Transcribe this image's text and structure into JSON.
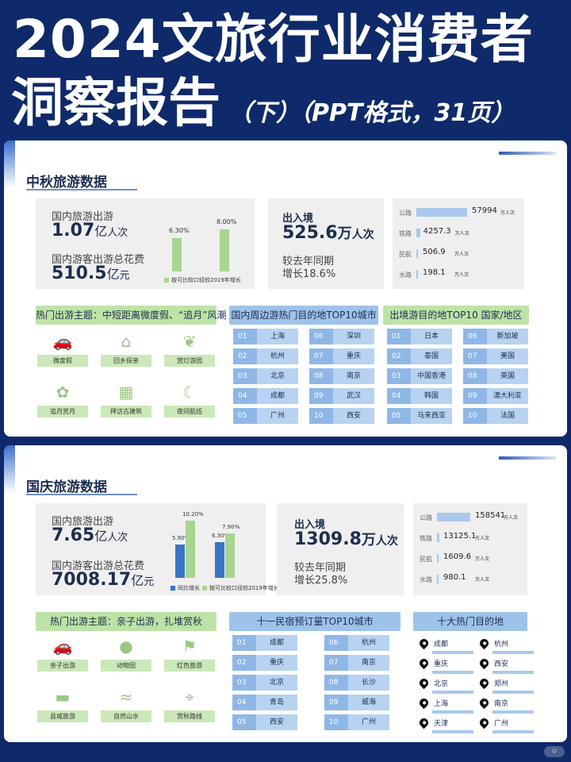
{
  "header": {
    "title_line1": "2024文旅行业消费者",
    "title_line2": "洞察报告",
    "subtitle": "（下）（PPT格式，31页）"
  },
  "mid_autumn": {
    "section_title": "中秋旅游数据",
    "domestic_trips_label": "国内旅游出游",
    "domestic_trips_value": "1.07",
    "domestic_trips_unit": "亿",
    "domestic_trips_unit2": "人次",
    "spend_label": "国内游客出游总花费",
    "spend_value": "510.5",
    "spend_unit": "亿",
    "spend_unit2": "元",
    "chart_data": {
      "type": "bar",
      "categories": [
        "国内旅游出游",
        "国内游客出游总花费"
      ],
      "series": [
        {
          "name": "按可比较口径较2019年增长",
          "values": [
            6.3,
            8.0
          ]
        }
      ],
      "value_labels": [
        "6.30%",
        "8.00%"
      ],
      "legend": "按可比较口径较2019年增长"
    },
    "crossborder_label": "出入境",
    "crossborder_value": "525.6",
    "crossborder_unit": "万",
    "crossborder_unit2": "人次",
    "yoy_label": "较去年同期",
    "yoy_value": "增长18.6%",
    "transport": [
      {
        "mode": "公路",
        "value": "57994",
        "unit": "万人次",
        "ratio": 1.0
      },
      {
        "mode": "铁路",
        "value": "4257.3",
        "unit": "万人次",
        "ratio": 0.073
      },
      {
        "mode": "民航",
        "value": "506.9",
        "unit": "万人次",
        "ratio": 0.009
      },
      {
        "mode": "水路",
        "value": "198.1",
        "unit": "万人次",
        "ratio": 0.003
      }
    ],
    "theme_title": "热门出游主题：中短距离微度假、“追月”风潮",
    "themes": [
      "微度假",
      "回乡探亲",
      "赏灯游园",
      "追月赏月",
      "拜访古建筑",
      "夜间航班"
    ],
    "nearby_title": "国内周边游热门目的地TOP10城市",
    "nearby": [
      {
        "no": "01",
        "city": "上海"
      },
      {
        "no": "02",
        "city": "杭州"
      },
      {
        "no": "03",
        "city": "北京"
      },
      {
        "no": "04",
        "city": "成都"
      },
      {
        "no": "05",
        "city": "广州"
      },
      {
        "no": "06",
        "city": "深圳"
      },
      {
        "no": "07",
        "city": "重庆"
      },
      {
        "no": "08",
        "city": "南京"
      },
      {
        "no": "09",
        "city": "武汉"
      },
      {
        "no": "10",
        "city": "西安"
      }
    ],
    "outbound_title": "出境游目的地TOP10 国家/地区",
    "outbound": [
      {
        "no": "01",
        "city": "日本"
      },
      {
        "no": "02",
        "city": "泰国"
      },
      {
        "no": "03",
        "city": "中国香港"
      },
      {
        "no": "04",
        "city": "韩国"
      },
      {
        "no": "05",
        "city": "马来西亚"
      },
      {
        "no": "06",
        "city": "新加坡"
      },
      {
        "no": "07",
        "city": "美国"
      },
      {
        "no": "08",
        "city": "英国"
      },
      {
        "no": "09",
        "city": "澳大利亚"
      },
      {
        "no": "10",
        "city": "法国"
      }
    ]
  },
  "national_day": {
    "section_title": "国庆旅游数据",
    "domestic_trips_label": "国内旅游出游",
    "domestic_trips_value": "7.65",
    "domestic_trips_unit": "亿",
    "domestic_trips_unit2": "人次",
    "spend_label": "国内游客出游总花费",
    "spend_value": "7008.17",
    "spend_unit": "亿",
    "spend_unit2": "元",
    "chart_data": {
      "type": "bar",
      "categories": [
        "国内旅游出游",
        "国内游客出游总花费"
      ],
      "series": [
        {
          "name": "同比增长",
          "values": [
            5.9,
            6.3
          ],
          "color": "#3875c6"
        },
        {
          "name": "按可比较口径较2019年增长",
          "values": [
            10.2,
            7.9
          ],
          "color": "#a8d58f"
        }
      ],
      "value_labels": [
        [
          "5.90%",
          "6.30%"
        ],
        [
          "10.20%",
          "7.90%"
        ]
      ]
    },
    "crossborder_label": "出入境",
    "crossborder_value": "1309.8",
    "crossborder_unit": "万",
    "crossborder_unit2": "人次",
    "yoy_label": "较去年同期",
    "yoy_value": "增长25.8%",
    "transport": [
      {
        "mode": "公路",
        "value": "158541",
        "unit": "万人次",
        "ratio": 1.0
      },
      {
        "mode": "铁路",
        "value": "13125.1",
        "unit": "万人次",
        "ratio": 0.083
      },
      {
        "mode": "民航",
        "value": "1609.6",
        "unit": "万人次",
        "ratio": 0.01
      },
      {
        "mode": "水路",
        "value": "980.1",
        "unit": "万人次",
        "ratio": 0.006
      }
    ],
    "theme_title": "热门出游主题：亲子出游，扎堆赏秋",
    "themes": [
      "亲子出游",
      "动物园",
      "红色旅游",
      "县城旅游",
      "自然山水",
      "赏秋路线"
    ],
    "hotel_title": "十一民宿预订量TOP10城市",
    "hotel": [
      {
        "no": "01",
        "city": "成都"
      },
      {
        "no": "02",
        "city": "重庆"
      },
      {
        "no": "03",
        "city": "北京"
      },
      {
        "no": "04",
        "city": "青岛"
      },
      {
        "no": "05",
        "city": "西安"
      },
      {
        "no": "06",
        "city": "杭州"
      },
      {
        "no": "07",
        "city": "南京"
      },
      {
        "no": "08",
        "city": "长沙"
      },
      {
        "no": "09",
        "city": "威海"
      },
      {
        "no": "10",
        "city": "广州"
      }
    ],
    "dest_title": "十大热门目的地",
    "destinations": [
      "成都",
      "重庆",
      "北京",
      "上海",
      "天津",
      "杭州",
      "西安",
      "郑州",
      "南京",
      "广州"
    ]
  },
  "icons": {
    "micro_vacation": "car-icon",
    "home_visit": "house-icon",
    "lantern": "lantern-icon",
    "moon_view": "flower-icon",
    "ancient_building": "building-icon",
    "night_flight": "moon-icon",
    "family": "car-icon",
    "zoo": "panda-icon",
    "red_tour": "flag-icon",
    "county_tour": "bus-icon",
    "nature": "wave-icon",
    "autumn_route": "map-icon",
    "destination": "map-pin-icon"
  }
}
